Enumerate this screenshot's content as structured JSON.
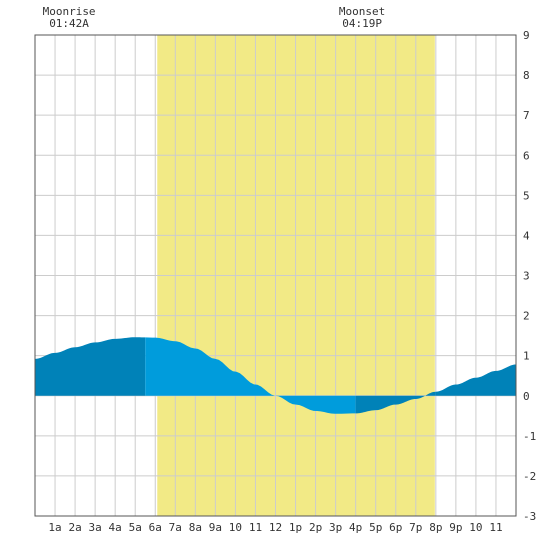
{
  "chart_data": {
    "type": "area",
    "title": "",
    "xlabel": "",
    "ylabel": "",
    "xlim": [
      0,
      24
    ],
    "ylim": [
      -3,
      9
    ],
    "x_tick_values": [
      1,
      2,
      3,
      4,
      5,
      6,
      7,
      8,
      9,
      10,
      11,
      12,
      13,
      14,
      15,
      16,
      17,
      18,
      19,
      20,
      21,
      22,
      23
    ],
    "x_tick_labels": [
      "1a",
      "2a",
      "3a",
      "4a",
      "5a",
      "6a",
      "7a",
      "8a",
      "9a",
      "10",
      "11",
      "12",
      "1p",
      "2p",
      "3p",
      "4p",
      "5p",
      "6p",
      "7p",
      "8p",
      "9p",
      "10",
      "11"
    ],
    "y_ticks": [
      -3,
      -2,
      -1,
      0,
      1,
      2,
      3,
      4,
      5,
      6,
      7,
      8,
      9
    ],
    "grid": true,
    "daylight": {
      "start": 6.1,
      "end": 19.95,
      "color": "#f2ea86"
    },
    "annotations": [
      {
        "label": "Moonrise",
        "time": "01:42A",
        "x": 1.7
      },
      {
        "label": "Moonset",
        "time": "04:19P",
        "x": 16.32
      }
    ],
    "series": [
      {
        "x": [
          0,
          1,
          2,
          3,
          4,
          5,
          6,
          7,
          8,
          9,
          10,
          11,
          12,
          13,
          14,
          15,
          16,
          17,
          18,
          19,
          20,
          21,
          22,
          23,
          24
        ],
        "y": [
          0.92,
          1.07,
          1.21,
          1.33,
          1.42,
          1.46,
          1.45,
          1.36,
          1.18,
          0.92,
          0.6,
          0.28,
          0.0,
          -0.22,
          -0.38,
          -0.45,
          -0.44,
          -0.36,
          -0.22,
          -0.08,
          0.1,
          0.28,
          0.45,
          0.62,
          0.78
        ]
      }
    ],
    "colors": {
      "dark": "#0082b8",
      "light": "#009cdc"
    },
    "color_bands": [
      {
        "from": 0,
        "to": 5.5,
        "tone": "dark"
      },
      {
        "from": 5.5,
        "to": 16,
        "tone": "light"
      },
      {
        "from": 16,
        "to": 20,
        "tone": "dark"
      },
      {
        "from": 20,
        "to": 24,
        "tone": "dark"
      }
    ]
  }
}
